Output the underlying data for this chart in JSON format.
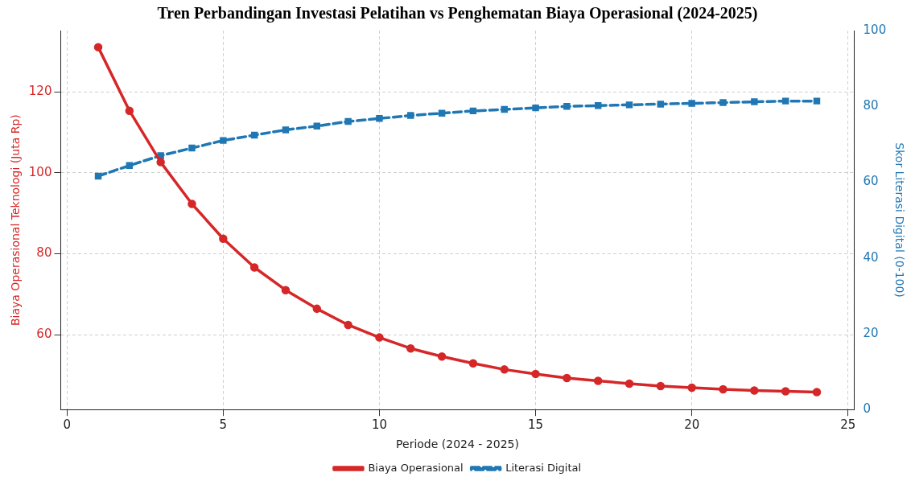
{
  "chart_data": {
    "type": "line",
    "title": "Tren Perbandingan Investasi Pelatihan vs Penghematan Biaya Operasional (2024-2025)",
    "xlabel": "Periode (2024 - 2025)",
    "ylabel": "Biaya Operasional Teknologi (Juta Rp)",
    "y2label": "Skor Literasi Digital (0-100)",
    "x": [
      1,
      2,
      3,
      4,
      5,
      6,
      7,
      8,
      9,
      10,
      11,
      12,
      13,
      14,
      15,
      16,
      17,
      18,
      19,
      20,
      21,
      22,
      23,
      24
    ],
    "series": [
      {
        "name": "Biaya Operasional",
        "color": "#d62728",
        "marker": "circle",
        "line_style": "solid",
        "values": [
          131.0,
          115.3,
          102.6,
          92.3,
          83.7,
          76.6,
          71.0,
          66.4,
          62.4,
          59.3,
          56.6,
          54.6,
          52.9,
          51.4,
          50.3,
          49.3,
          48.6,
          47.9,
          47.3,
          46.9,
          46.5,
          46.2,
          46.0,
          45.8
        ]
      },
      {
        "name": "Literasi Digital",
        "color": "#1f77b4",
        "marker": "square",
        "line_style": "dashed",
        "axis": "y2",
        "values": [
          61.6,
          64.4,
          67.0,
          69.0,
          71.0,
          72.4,
          73.8,
          74.8,
          76.0,
          76.8,
          77.6,
          78.2,
          78.8,
          79.2,
          79.6,
          80.0,
          80.2,
          80.4,
          80.6,
          80.8,
          81.0,
          81.2,
          81.4,
          81.4
        ]
      }
    ],
    "xlim": [
      -0.2,
      25.2
    ],
    "xticks": [
      0,
      5,
      10,
      15,
      20,
      25
    ],
    "ylim": [
      41.5,
      135.1
    ],
    "yticks": [
      60,
      80,
      100,
      120
    ],
    "y2lim": [
      0,
      100
    ],
    "y2ticks": [
      0,
      20,
      40,
      60,
      80,
      100
    ],
    "grid": true,
    "legend": "bottom"
  }
}
